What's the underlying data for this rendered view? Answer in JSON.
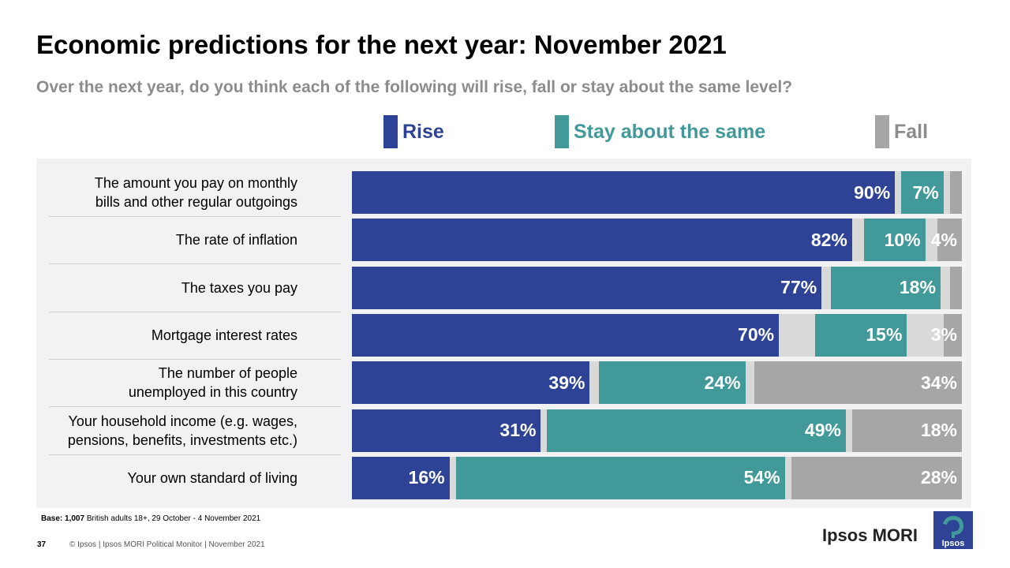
{
  "header": {
    "title": "Economic predictions for the next year: November 2021",
    "subtitle": "Over the next year, do you think each of the following will rise, fall or stay about the same level?"
  },
  "footer": {
    "base_bold": "Base: 1,007",
    "base_rest": " British adults 18+, 29 October - 4 November 2021",
    "page_number": "37",
    "copyright": "© Ipsos | Ipsos MORI Political Monitor | November 2021",
    "brand": "Ipsos MORI",
    "logo_text": "Ipsos"
  },
  "colors": {
    "rise": "#2e4396",
    "same": "#42999a",
    "fall": "#a6a6a6",
    "gap": "#d9d9d9"
  },
  "chart_data": {
    "type": "bar",
    "orientation": "horizontal",
    "stacked": true,
    "title": "Economic predictions for the next year: November 2021",
    "legend": [
      {
        "key": "rise",
        "label": "Rise"
      },
      {
        "key": "same",
        "label": "Stay about the same"
      },
      {
        "key": "fall",
        "label": "Fall"
      }
    ],
    "legend_position": "top",
    "categories": [
      "The amount you pay on monthly bills and other regular outgoings",
      "The rate of inflation",
      "The taxes you pay",
      "Mortgage interest rates",
      "The number of people unemployed in this country",
      "Your household income (e.g. wages, pensions, benefits, investments etc.)",
      "Your own standard of living"
    ],
    "category_lines": [
      [
        "The amount you pay on monthly",
        "bills and other regular outgoings"
      ],
      [
        "The rate of inflation"
      ],
      [
        "The taxes you pay"
      ],
      [
        "Mortgage interest rates"
      ],
      [
        "The number of people",
        "unemployed in this country"
      ],
      [
        "Your household income (e.g. wages,",
        "pensions, benefits, investments etc.)"
      ],
      [
        "Your own standard of living"
      ]
    ],
    "series": [
      {
        "key": "rise",
        "name": "Rise",
        "values": [
          90,
          82,
          77,
          70,
          39,
          31,
          16
        ],
        "labels": [
          "90%",
          "82%",
          "77%",
          "70%",
          "39%",
          "31%",
          "16%"
        ]
      },
      {
        "key": "same",
        "name": "Stay about the same",
        "values": [
          7,
          10,
          18,
          15,
          24,
          49,
          54
        ],
        "labels": [
          "7%",
          "10%",
          "18%",
          "15%",
          "24%",
          "49%",
          "54%"
        ]
      },
      {
        "key": "fall",
        "name": "Fall",
        "values": [
          2,
          4,
          2,
          3,
          34,
          18,
          28
        ],
        "labels": [
          "",
          "4%",
          "",
          "3%",
          "34%",
          "18%",
          "28%"
        ]
      }
    ],
    "xlim": [
      0,
      100
    ]
  }
}
